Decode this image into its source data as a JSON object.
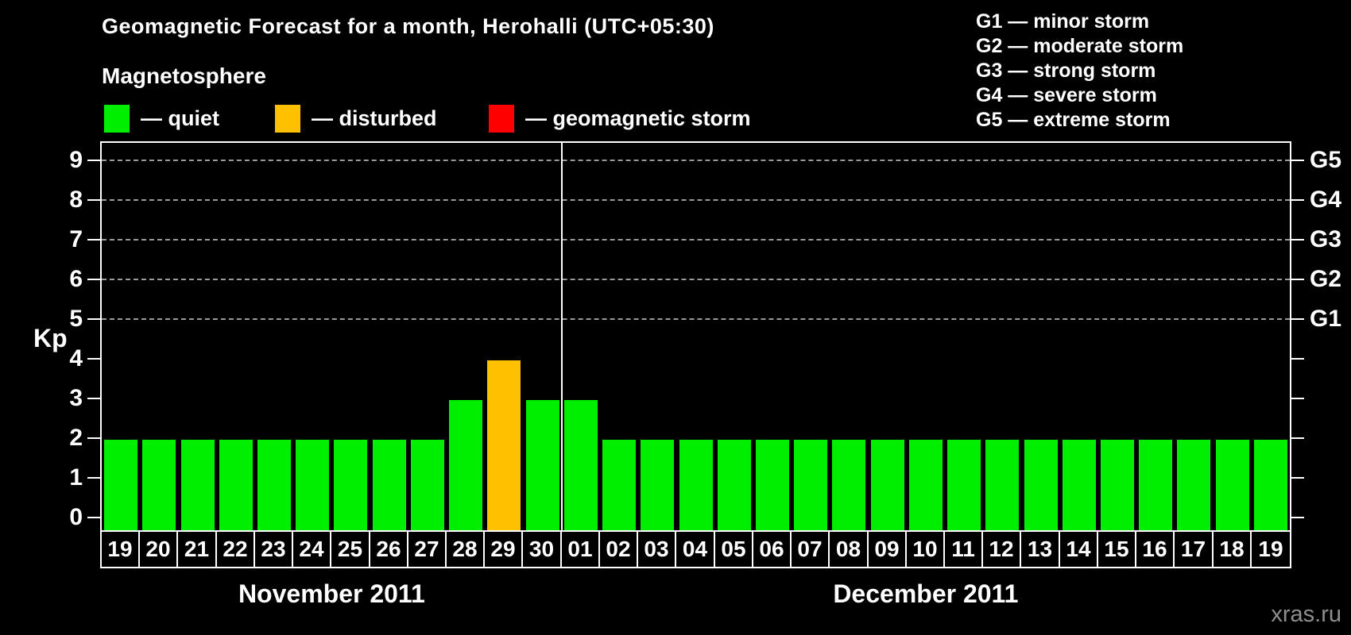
{
  "title": "Geomagnetic Forecast for a month, Herohalli (UTC+05:30)",
  "watermark": "xras.ru",
  "magnetosphere_legend": {
    "heading": "Magnetosphere",
    "items": [
      {
        "name": "quiet",
        "label": "— quiet",
        "color": "#00ee00"
      },
      {
        "name": "disturbed",
        "label": "— disturbed",
        "color": "#ffc000"
      },
      {
        "name": "storm",
        "label": "— geomagnetic storm",
        "color": "#ff0000"
      }
    ]
  },
  "g_scale_legend": [
    "G1 — minor storm",
    "G2 — moderate storm",
    "G3 — strong storm",
    "G4 — severe storm",
    "G5 — extreme storm"
  ],
  "chart_data": {
    "type": "bar",
    "title": "Geomagnetic Forecast for a month, Herohalli (UTC+05:30)",
    "ylabel": "Kp",
    "ylim": [
      0,
      9
    ],
    "yticks": [
      0,
      1,
      2,
      3,
      4,
      5,
      6,
      7,
      8,
      9
    ],
    "grid_levels": [
      5,
      6,
      7,
      8,
      9
    ],
    "grid_style": "dashed horizontal gray lines at G-storm levels",
    "legend_position": "top",
    "right_axis_labels": [
      {
        "kp": 5,
        "label": "G1"
      },
      {
        "kp": 6,
        "label": "G2"
      },
      {
        "kp": 7,
        "label": "G3"
      },
      {
        "kp": 8,
        "label": "G4"
      },
      {
        "kp": 9,
        "label": "G5"
      }
    ],
    "bar_colors": {
      "quiet": "#00ee00",
      "disturbed": "#ffc000",
      "storm": "#ff0000"
    },
    "groups": [
      {
        "label": "November 2011",
        "categories": [
          "19",
          "20",
          "21",
          "22",
          "23",
          "24",
          "25",
          "26",
          "27",
          "28",
          "29",
          "30"
        ],
        "values": [
          2,
          2,
          2,
          2,
          2,
          2,
          2,
          2,
          2,
          3,
          4,
          3
        ],
        "states": [
          "quiet",
          "quiet",
          "quiet",
          "quiet",
          "quiet",
          "quiet",
          "quiet",
          "quiet",
          "quiet",
          "quiet",
          "disturbed",
          "quiet"
        ]
      },
      {
        "label": "December 2011",
        "categories": [
          "01",
          "02",
          "03",
          "04",
          "05",
          "06",
          "07",
          "08",
          "09",
          "10",
          "11",
          "12",
          "13",
          "14",
          "15",
          "16",
          "17",
          "18",
          "19"
        ],
        "values": [
          3,
          2,
          2,
          2,
          2,
          2,
          2,
          2,
          2,
          2,
          2,
          2,
          2,
          2,
          2,
          2,
          2,
          2,
          2
        ],
        "states": [
          "quiet",
          "quiet",
          "quiet",
          "quiet",
          "quiet",
          "quiet",
          "quiet",
          "quiet",
          "quiet",
          "quiet",
          "quiet",
          "quiet",
          "quiet",
          "quiet",
          "quiet",
          "quiet",
          "quiet",
          "quiet",
          "quiet"
        ]
      }
    ]
  }
}
